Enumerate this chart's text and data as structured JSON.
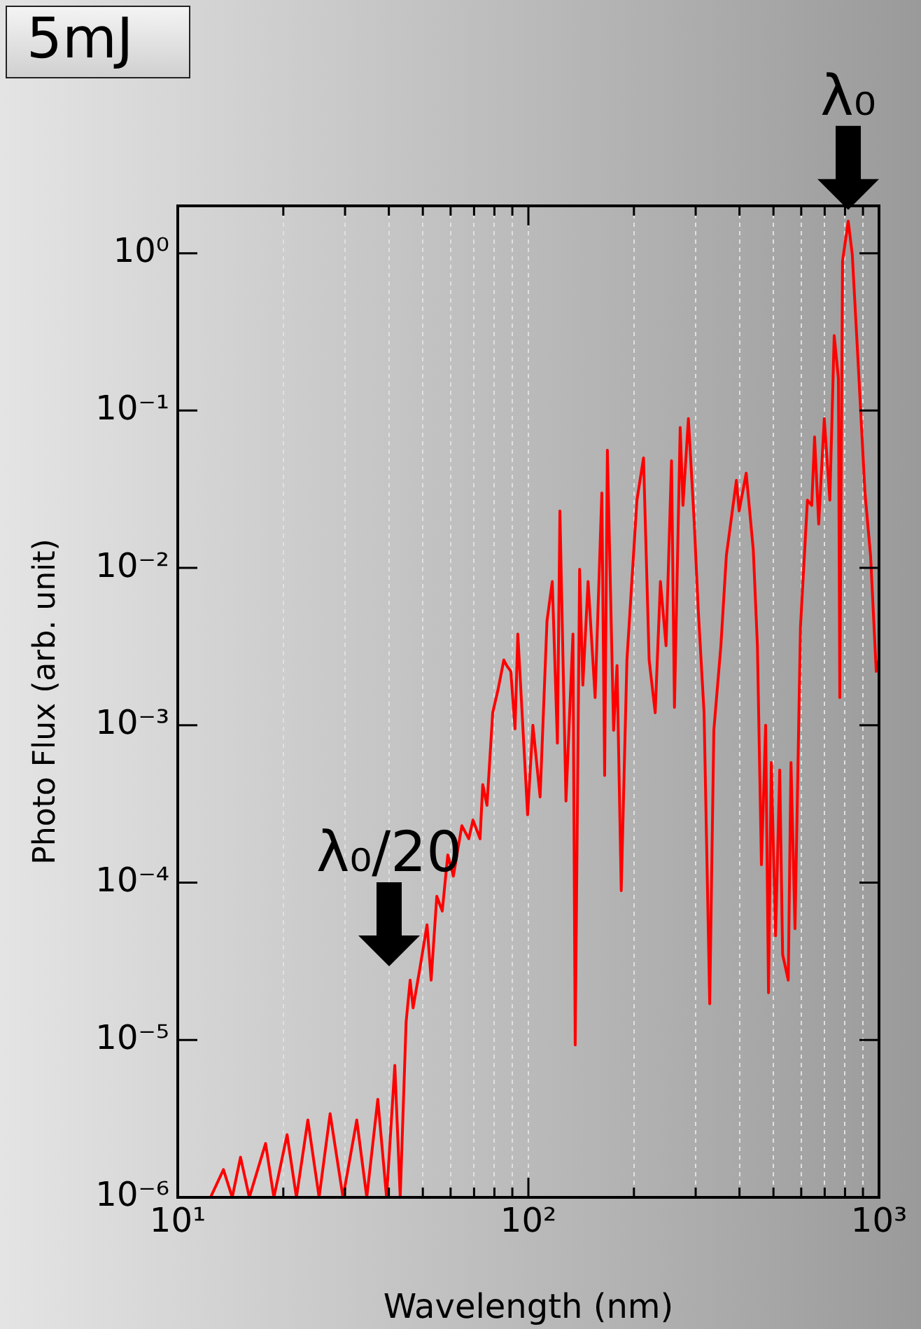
{
  "chart_data": {
    "type": "line",
    "xlabel": "Wavelength (nm)",
    "ylabel": "Photo Flux (arb. unit)",
    "log": "xy",
    "grid": "x",
    "marker": "none",
    "line_style": "solid",
    "legend": false,
    "xlim": [
      10,
      1000
    ],
    "ylim": [
      1e-06,
      2
    ],
    "xticks": [
      {
        "value": 10,
        "label": "10¹"
      },
      {
        "value": 20,
        "label": null
      },
      {
        "value": 30,
        "label": null
      },
      {
        "value": 40,
        "label": null
      },
      {
        "value": 50,
        "label": null
      },
      {
        "value": 60,
        "label": null
      },
      {
        "value": 70,
        "label": null
      },
      {
        "value": 80,
        "label": null
      },
      {
        "value": 90,
        "label": null
      },
      {
        "value": 100,
        "label": "10²"
      },
      {
        "value": 200,
        "label": null
      },
      {
        "value": 300,
        "label": null
      },
      {
        "value": 400,
        "label": null
      },
      {
        "value": 500,
        "label": null
      },
      {
        "value": 600,
        "label": null
      },
      {
        "value": 700,
        "label": null
      },
      {
        "value": 800,
        "label": null
      },
      {
        "value": 900,
        "label": null
      },
      {
        "value": 1000,
        "label": "10³"
      }
    ],
    "yticks": [
      {
        "value": 1e-06,
        "label": "10⁻⁶"
      },
      {
        "value": 1e-05,
        "label": "10⁻⁵"
      },
      {
        "value": 0.0001,
        "label": "10⁻⁴"
      },
      {
        "value": 0.001,
        "label": "10⁻³"
      },
      {
        "value": 0.01,
        "label": "10⁻²"
      },
      {
        "value": 0.1,
        "label": "10⁻¹"
      },
      {
        "value": 1,
        "label": "10⁰"
      }
    ],
    "annotations": [
      "5mJ",
      {
        "text": "λ₀",
        "x": 817,
        "y": 1.6
      },
      "λ₀/20"
    ],
    "series": [
      {
        "color": "#ff0000",
        "x": [
          12.4,
          13.5,
          14.3,
          15.1,
          16.0,
          17.8,
          18.8,
          20.5,
          21.8,
          23.5,
          25.3,
          27.2,
          29.6,
          32.4,
          34.6,
          37.2,
          39.4,
          41.6,
          43.1,
          44.8,
          46.0,
          46.9,
          49.1,
          51.4,
          52.8,
          54.8,
          56.8,
          58.9,
          61.1,
          64.6,
          67.6,
          69.5,
          72.8,
          74.1,
          76.2,
          79.1,
          82.0,
          85.1,
          86.7,
          89.1,
          91.6,
          93.3,
          99.5,
          103,
          108,
          113,
          117,
          121,
          123,
          128,
          134,
          136,
          140,
          143,
          148,
          155,
          162,
          165,
          168,
          175,
          179,
          184,
          191,
          204,
          213,
          221,
          230,
          238,
          247,
          256,
          261,
          271,
          276,
          286,
          297,
          305,
          317,
          329,
          338,
          354,
          367,
          392,
          399,
          418,
          438,
          450,
          462,
          475,
          484,
          493,
          507,
          521,
          531,
          551,
          561,
          576,
          597,
          625,
          643,
          655,
          673,
          698,
          724,
          745,
          766,
          773,
          787,
          817,
          839,
          871,
          912,
          946,
          982,
          1000
        ],
        "values": [
          1e-06,
          1.5e-06,
          1e-06,
          1.8e-06,
          1e-06,
          2.2e-06,
          1e-06,
          2.5e-06,
          1e-06,
          3.1e-06,
          1e-06,
          3.4e-06,
          1e-06,
          3.1e-06,
          1e-06,
          4.2e-06,
          1e-06,
          6.9e-06,
          1e-06,
          1.3e-05,
          2.4e-05,
          1.6e-05,
          2.9e-05,
          5.4e-05,
          2.4e-05,
          8.2e-05,
          6.6e-05,
          0.00015,
          0.00011,
          0.00023,
          0.00019,
          0.00025,
          0.00019,
          0.00042,
          0.00031,
          0.0012,
          0.0017,
          0.0026,
          0.0024,
          0.0022,
          0.00095,
          0.0038,
          0.00027,
          0.001,
          0.00035,
          0.0046,
          0.0082,
          0.00077,
          0.023,
          0.00033,
          0.0038,
          9.3e-06,
          0.0098,
          0.0018,
          0.0082,
          0.0015,
          0.03,
          0.00048,
          0.056,
          0.00093,
          0.0024,
          8.9e-05,
          0.0026,
          0.027,
          0.05,
          0.0026,
          0.0012,
          0.0082,
          0.0032,
          0.048,
          0.0013,
          0.078,
          0.025,
          0.089,
          0.02,
          0.0055,
          0.0012,
          1.7e-05,
          0.00093,
          0.0032,
          0.012,
          0.036,
          0.023,
          0.04,
          0.013,
          0.0032,
          0.00013,
          0.001,
          2e-05,
          0.00058,
          4.6e-05,
          0.00052,
          3.5e-05,
          2.4e-05,
          0.00058,
          5.1e-05,
          0.0042,
          0.027,
          0.025,
          0.068,
          0.019,
          0.089,
          0.027,
          0.3,
          0.16,
          0.0015,
          0.89,
          1.6,
          0.98,
          0.21,
          0.03,
          0.012,
          0.0022,
          0.0026
        ]
      }
    ]
  }
}
